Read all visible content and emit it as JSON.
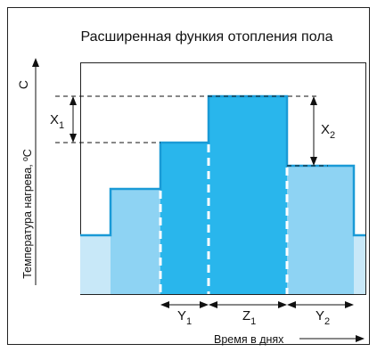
{
  "title": "Расширенная функия отопления пола",
  "y_axis": {
    "unit": "C",
    "label": "Температура нагрева, ºC"
  },
  "x_axis": {
    "label": "Время в днях"
  },
  "dimensions": {
    "x1": {
      "letter": "X",
      "sub": "1"
    },
    "x2": {
      "letter": "X",
      "sub": "2"
    },
    "y1": {
      "letter": "Y",
      "sub": "1"
    },
    "z1": {
      "letter": "Z",
      "sub": "1"
    },
    "y2": {
      "letter": "Y",
      "sub": "2"
    }
  },
  "chart_data": {
    "type": "step",
    "stages": [
      "base",
      "step-1",
      "step-2",
      "peak",
      "step-down",
      "base"
    ],
    "relative_levels": [
      0,
      1,
      2,
      3,
      2,
      0
    ],
    "colors": {
      "base_fill": "#c8e8f8",
      "light_fill": "#8ed3f3",
      "dark_fill": "#29b6ec",
      "outline": "#1a9ad6",
      "frame": "#222222"
    }
  }
}
